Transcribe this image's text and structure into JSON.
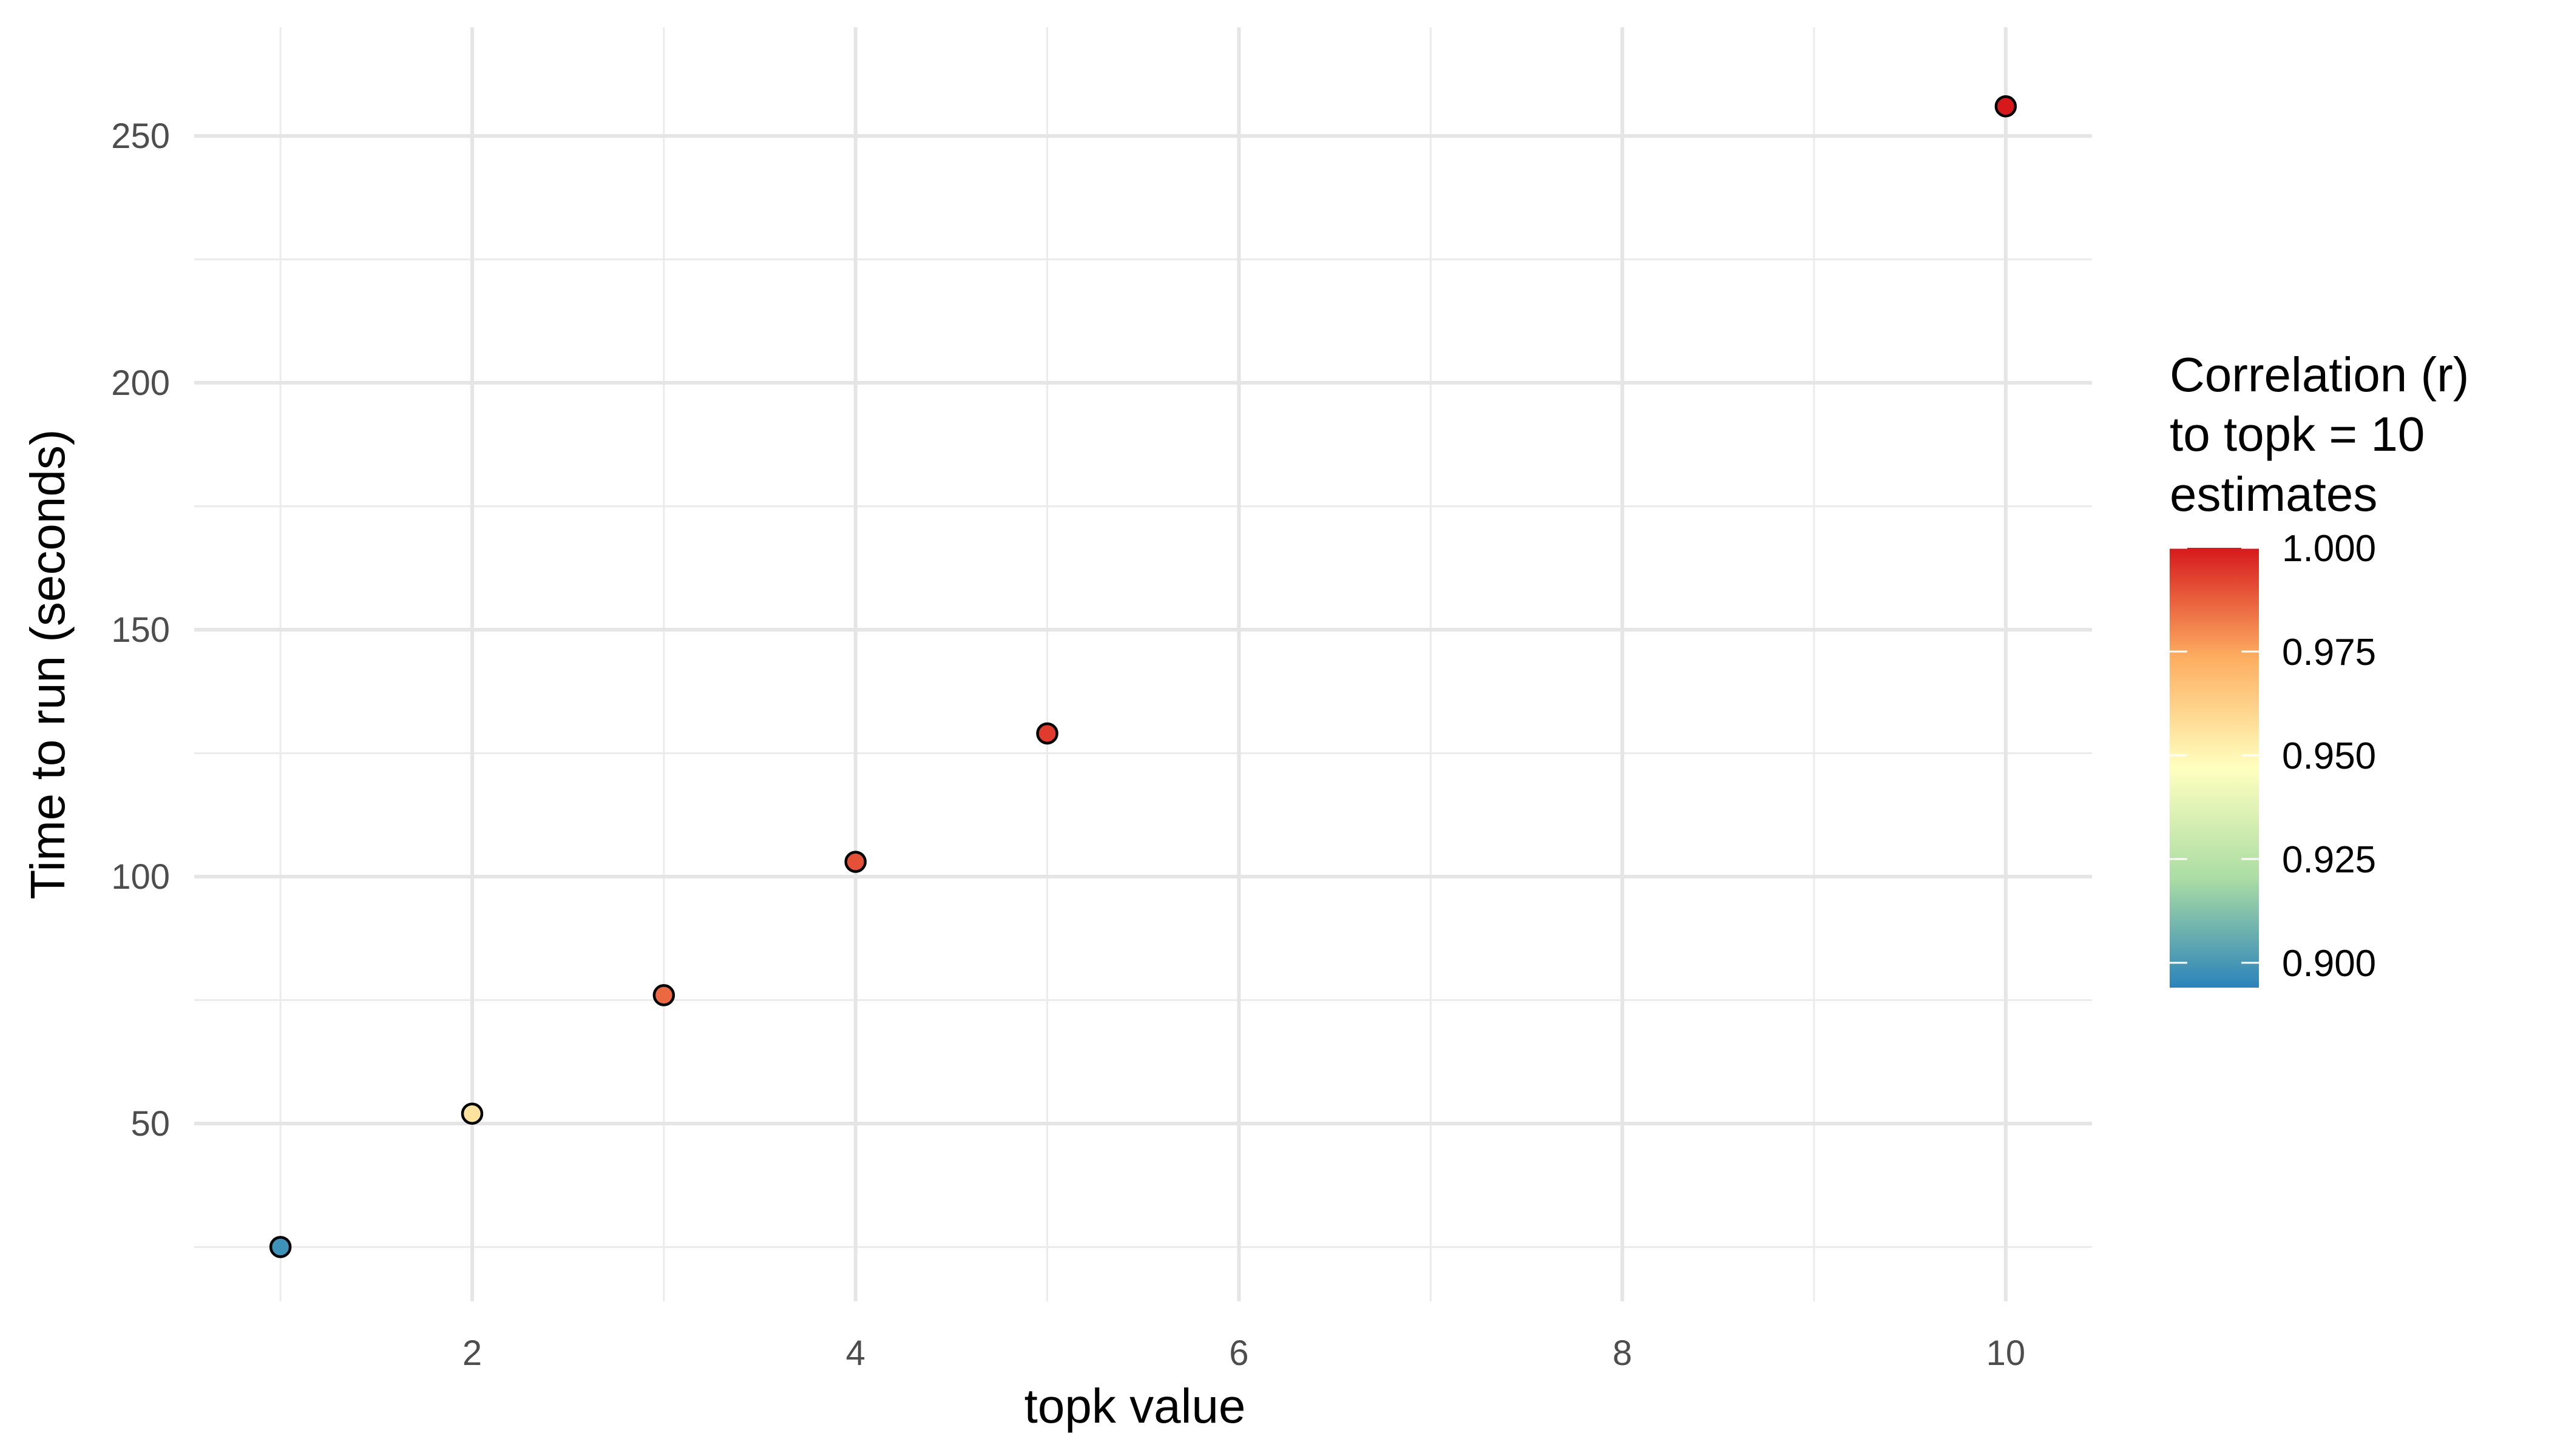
{
  "chart_data": {
    "type": "scatter",
    "title": "",
    "xlabel": "topk value",
    "ylabel": "Time to run (seconds)",
    "xlim": [
      0.55,
      10.45
    ],
    "ylim": [
      14,
      272
    ],
    "x_ticks": [
      2,
      4,
      6,
      8,
      10
    ],
    "y_ticks": [
      50,
      100,
      150,
      200,
      250
    ],
    "grid": true,
    "points": [
      {
        "x": 1,
        "y": 25,
        "r": 0.898
      },
      {
        "x": 2,
        "y": 52,
        "r": 0.956
      },
      {
        "x": 3,
        "y": 76,
        "r": 0.986
      },
      {
        "x": 4,
        "y": 103,
        "r": 0.99
      },
      {
        "x": 5,
        "y": 129,
        "r": 0.994
      },
      {
        "x": 10,
        "y": 256,
        "r": 1.0
      }
    ],
    "legend": {
      "title_lines": [
        "Correlation (r)",
        "to topk = 10",
        "estimates"
      ],
      "position": "right",
      "min": 0.894,
      "max": 1.0,
      "breaks": [
        1.0,
        0.975,
        0.95,
        0.925,
        0.9
      ],
      "break_labels": [
        "1.000",
        "0.975",
        "0.950",
        "0.925",
        "0.900"
      ],
      "palette": [
        "#2B83BA",
        "#ABDDA4",
        "#FFFFBF",
        "#FDAE61",
        "#D7191C"
      ]
    }
  }
}
